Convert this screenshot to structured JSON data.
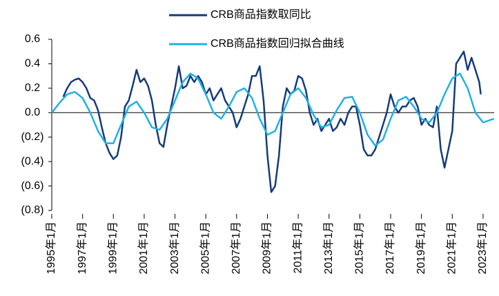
{
  "chart_data": {
    "type": "line",
    "xlim": [
      1995,
      2023.72
    ],
    "xticks": [
      {
        "value": 1995,
        "label": "1995年1月"
      },
      {
        "value": 1997,
        "label": "1997年1月"
      },
      {
        "value": 1999,
        "label": "1999年1月"
      },
      {
        "value": 2001,
        "label": "2001年1月"
      },
      {
        "value": 2003,
        "label": "2003年1月"
      },
      {
        "value": 2005,
        "label": "2005年1月"
      },
      {
        "value": 2007,
        "label": "2007年1月"
      },
      {
        "value": 2009,
        "label": "2009年1月"
      },
      {
        "value": 2011,
        "label": "2011年1月"
      },
      {
        "value": 2013,
        "label": "2013年1月"
      },
      {
        "value": 2015,
        "label": "2015年1月"
      },
      {
        "value": 2017,
        "label": "2017年1月"
      },
      {
        "value": 2019,
        "label": "2019年1月"
      },
      {
        "value": 2021,
        "label": "2021年1月"
      },
      {
        "value": 2023,
        "label": "2023年1月"
      }
    ],
    "ylim": [
      -0.8,
      0.6
    ],
    "yticks": [
      0.6,
      0.4,
      0.2,
      {
        "value": 0,
        "label": "0.0"
      },
      {
        "value": -0.2,
        "label": "(0.2)"
      },
      {
        "value": -0.4,
        "label": "(0.4)"
      },
      {
        "value": -0.6,
        "label": "(0.6)"
      },
      {
        "value": -0.8,
        "label": "(0.8)"
      }
    ],
    "legend": "top",
    "series": [
      {
        "name": "CRB商品指数取同比",
        "color": "#143a7b",
        "x": [
          1995.75,
          1996,
          1996.25,
          1996.5,
          1996.75,
          1997,
          1997.25,
          1997.5,
          1997.75,
          1998,
          1998.25,
          1998.5,
          1998.75,
          1999,
          1999.25,
          1999.5,
          1999.75,
          2000,
          2000.25,
          2000.5,
          2000.75,
          2001,
          2001.25,
          2001.5,
          2001.75,
          2002,
          2002.25,
          2002.5,
          2002.75,
          2003,
          2003.25,
          2003.5,
          2003.75,
          2004,
          2004.25,
          2004.5,
          2004.75,
          2005,
          2005.25,
          2005.5,
          2005.75,
          2006,
          2006.25,
          2006.5,
          2006.75,
          2007,
          2007.25,
          2007.5,
          2007.75,
          2008,
          2008.25,
          2008.5,
          2008.75,
          2009,
          2009.25,
          2009.5,
          2009.75,
          2010,
          2010.25,
          2010.5,
          2010.75,
          2011,
          2011.25,
          2011.5,
          2011.75,
          2012,
          2012.25,
          2012.5,
          2012.75,
          2013,
          2013.25,
          2013.5,
          2013.75,
          2014,
          2014.25,
          2014.5,
          2014.75,
          2015,
          2015.25,
          2015.5,
          2015.75,
          2016,
          2016.25,
          2016.5,
          2016.75,
          2017,
          2017.25,
          2017.5,
          2017.75,
          2018,
          2018.25,
          2018.5,
          2018.75,
          2019,
          2019.25,
          2019.5,
          2019.75,
          2020,
          2020.25,
          2020.5,
          2020.75,
          2021,
          2021.25,
          2021.5,
          2021.75,
          2022,
          2022.25,
          2022.5,
          2022.75,
          2022.85
        ],
        "values": [
          0.13,
          0.2,
          0.25,
          0.27,
          0.28,
          0.25,
          0.2,
          0.12,
          0.1,
          0.02,
          -0.12,
          -0.25,
          -0.33,
          -0.38,
          -0.35,
          -0.2,
          0.05,
          0.1,
          0.22,
          0.35,
          0.25,
          0.28,
          0.22,
          0.1,
          -0.1,
          -0.25,
          -0.28,
          -0.1,
          0.05,
          0.2,
          0.38,
          0.2,
          0.22,
          0.3,
          0.25,
          0.3,
          0.25,
          0.15,
          0.2,
          0.1,
          0.15,
          0.2,
          0.1,
          0.05,
          0.0,
          -0.12,
          -0.05,
          0.05,
          0.15,
          0.3,
          0.3,
          0.38,
          0.1,
          -0.35,
          -0.65,
          -0.6,
          -0.35,
          0.05,
          0.2,
          0.15,
          0.18,
          0.3,
          0.28,
          0.18,
          0.0,
          -0.1,
          -0.05,
          -0.15,
          -0.1,
          -0.05,
          -0.15,
          -0.12,
          -0.05,
          -0.1,
          0.0,
          0.05,
          0.05,
          -0.1,
          -0.3,
          -0.35,
          -0.35,
          -0.3,
          -0.2,
          -0.1,
          0.0,
          0.15,
          0.05,
          0.0,
          0.05,
          0.05,
          0.1,
          0.12,
          0.05,
          -0.1,
          -0.05,
          -0.1,
          -0.12,
          0.05,
          -0.3,
          -0.45,
          -0.3,
          -0.15,
          0.4,
          0.45,
          0.5,
          0.35,
          0.45,
          0.35,
          0.25,
          0.15
        ]
      },
      {
        "name": "CRB商品指数回归拟合曲线",
        "color": "#1fb0e6",
        "x": [
          1995,
          1995.5,
          1996,
          1996.5,
          1997,
          1997.5,
          1998,
          1998.5,
          1999,
          1999.5,
          2000,
          2000.5,
          2001,
          2001.5,
          2002,
          2002.5,
          2003,
          2003.5,
          2004,
          2004.5,
          2005,
          2005.5,
          2006,
          2006.5,
          2007,
          2007.5,
          2008,
          2008.5,
          2009,
          2009.5,
          2010,
          2010.5,
          2011,
          2011.5,
          2012,
          2012.5,
          2013,
          2013.5,
          2014,
          2014.5,
          2015,
          2015.5,
          2016,
          2016.5,
          2017,
          2017.5,
          2018,
          2018.5,
          2019,
          2019.5,
          2020,
          2020.5,
          2021,
          2021.5,
          2022,
          2022.5,
          2023,
          2023.7
        ],
        "values": [
          0.0,
          0.08,
          0.15,
          0.17,
          0.12,
          0.0,
          -0.15,
          -0.25,
          -0.25,
          -0.1,
          0.05,
          0.09,
          0.0,
          -0.12,
          -0.14,
          -0.05,
          0.1,
          0.25,
          0.32,
          0.28,
          0.15,
          0.0,
          -0.05,
          0.05,
          0.17,
          0.2,
          0.12,
          -0.05,
          -0.18,
          -0.15,
          0.0,
          0.15,
          0.2,
          0.12,
          -0.02,
          -0.12,
          -0.1,
          0.02,
          0.12,
          0.13,
          0.0,
          -0.18,
          -0.27,
          -0.22,
          -0.05,
          0.1,
          0.13,
          0.05,
          -0.05,
          -0.08,
          0.0,
          0.15,
          0.28,
          0.32,
          0.2,
          0.0,
          -0.08,
          -0.05
        ]
      }
    ]
  }
}
